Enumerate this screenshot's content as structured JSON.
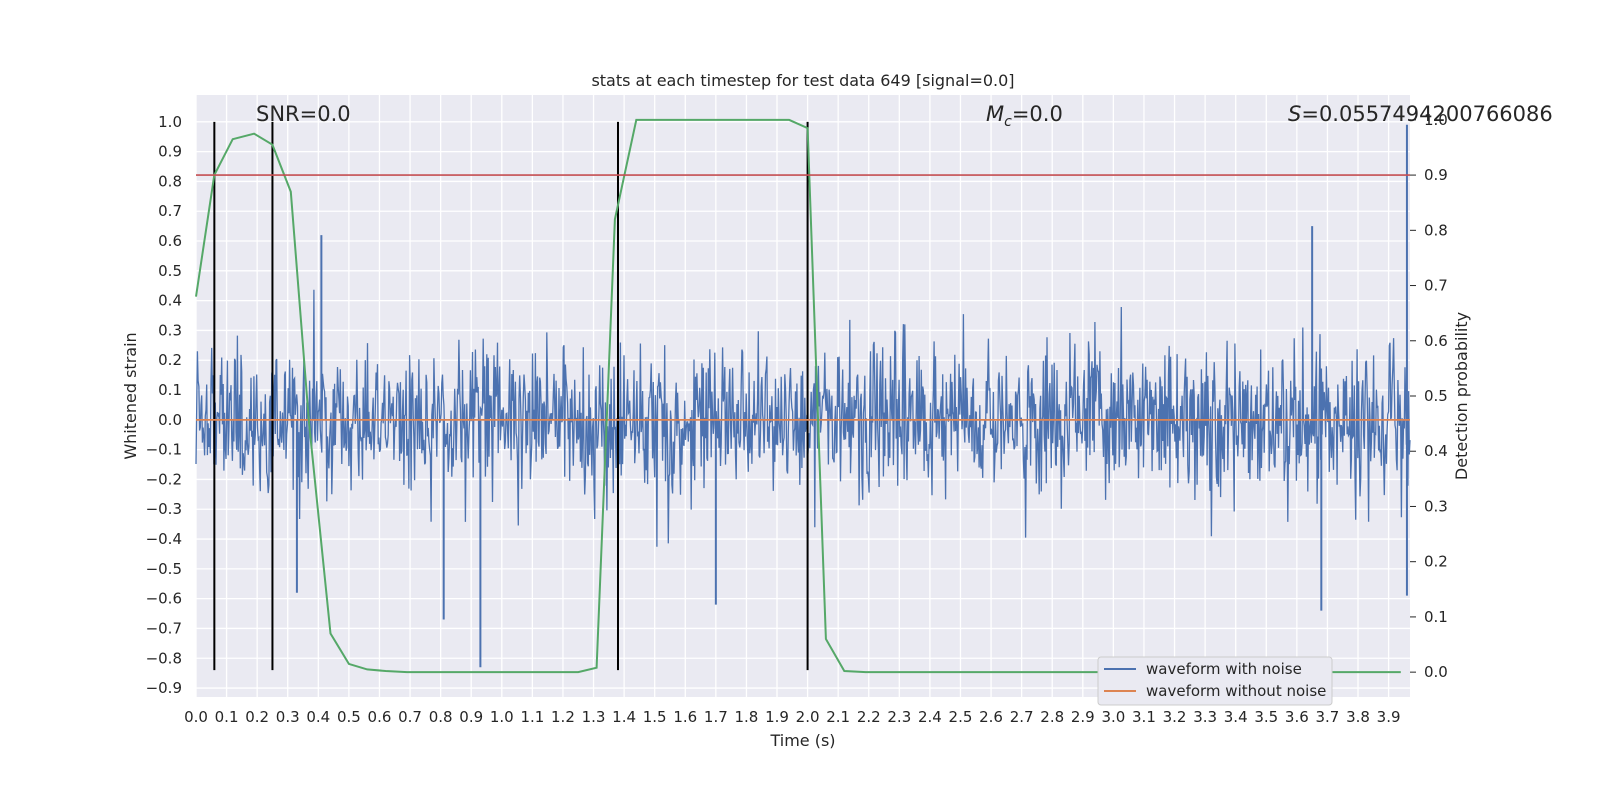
{
  "chart_data": {
    "type": "line",
    "title": "stats at each timestep for test data 649 [signal=0.0]",
    "xlabel": "Time (s)",
    "ylabel_left": "Whitened strain",
    "ylabel_right": "Detection probability",
    "xlim": [
      0.0,
      3.97
    ],
    "ylim_left": [
      -0.93,
      1.09
    ],
    "ylim_right": [
      -0.045,
      1.045
    ],
    "grid": true,
    "legend_placement": "lower-right",
    "x_ticks": [
      "0.0",
      "0.1",
      "0.2",
      "0.3",
      "0.4",
      "0.5",
      "0.6",
      "0.7",
      "0.8",
      "0.9",
      "1.0",
      "1.1",
      "1.2",
      "1.3",
      "1.4",
      "1.5",
      "1.6",
      "1.7",
      "1.8",
      "1.9",
      "2.0",
      "2.1",
      "2.2",
      "2.3",
      "2.4",
      "2.5",
      "2.6",
      "2.7",
      "2.8",
      "2.9",
      "3.0",
      "3.1",
      "3.2",
      "3.3",
      "3.4",
      "3.5",
      "3.6",
      "3.7",
      "3.8",
      "3.9"
    ],
    "y_ticks_left": [
      "1.0",
      "0.9",
      "0.8",
      "0.7",
      "0.6",
      "0.5",
      "0.4",
      "0.3",
      "0.2",
      "0.1",
      "0.0",
      "−0.1",
      "−0.2",
      "−0.3",
      "−0.4",
      "−0.5",
      "−0.6",
      "−0.7",
      "−0.8",
      "−0.9"
    ],
    "y_ticks_right": [
      "1.0",
      "0.9",
      "0.8",
      "0.7",
      "0.6",
      "0.5",
      "0.4",
      "0.3",
      "0.2",
      "0.1",
      "0.0"
    ],
    "annotations": {
      "snr": "SNR=0.0",
      "mc_symbol": "M",
      "mc_subscript": "c",
      "mc_value": "=0.0",
      "s_symbol": "S",
      "s_value": "=0.0557494200766086"
    },
    "series": [
      {
        "name": "waveform with noise",
        "axis": "left",
        "color": "#4c72b0",
        "noise_envelope": {
          "typical_amplitude": 0.3,
          "spikes": [
            [
              0.41,
              0.62
            ],
            [
              0.93,
              -0.83
            ],
            [
              0.81,
              -0.67
            ],
            [
              3.65,
              0.65
            ],
            [
              3.96,
              0.99
            ],
            [
              3.96,
              -0.59
            ],
            [
              3.68,
              -0.64
            ],
            [
              1.7,
              -0.62
            ],
            [
              0.33,
              -0.58
            ]
          ]
        }
      },
      {
        "name": "waveform without noise",
        "axis": "left",
        "color": "#dd8452",
        "x": [
          0.0,
          3.97
        ],
        "y": [
          0.0,
          0.0
        ]
      },
      {
        "axis": "right",
        "color": "#55a868",
        "x": [
          0.0,
          0.06,
          0.12,
          0.19,
          0.25,
          0.31,
          0.37,
          0.44,
          0.5,
          0.56,
          0.62,
          0.69,
          1.25,
          1.31,
          1.37,
          1.44,
          1.5,
          1.94,
          2.0,
          2.06,
          2.12,
          2.19,
          3.94
        ],
        "y": [
          0.68,
          0.9,
          0.965,
          0.975,
          0.955,
          0.87,
          0.45,
          0.07,
          0.015,
          0.005,
          0.002,
          0.0,
          0.0,
          0.008,
          0.82,
          1.0,
          1.0,
          1.0,
          0.985,
          0.06,
          0.002,
          0.0,
          0.0
        ]
      }
    ],
    "threshold_line": {
      "axis": "right",
      "value": 0.9,
      "color": "#c44e52"
    },
    "event_markers": {
      "x": [
        0.06,
        0.25,
        1.38,
        2.0
      ],
      "y_top": 1.0,
      "y_bottom": -0.84,
      "color": "#000000"
    }
  }
}
